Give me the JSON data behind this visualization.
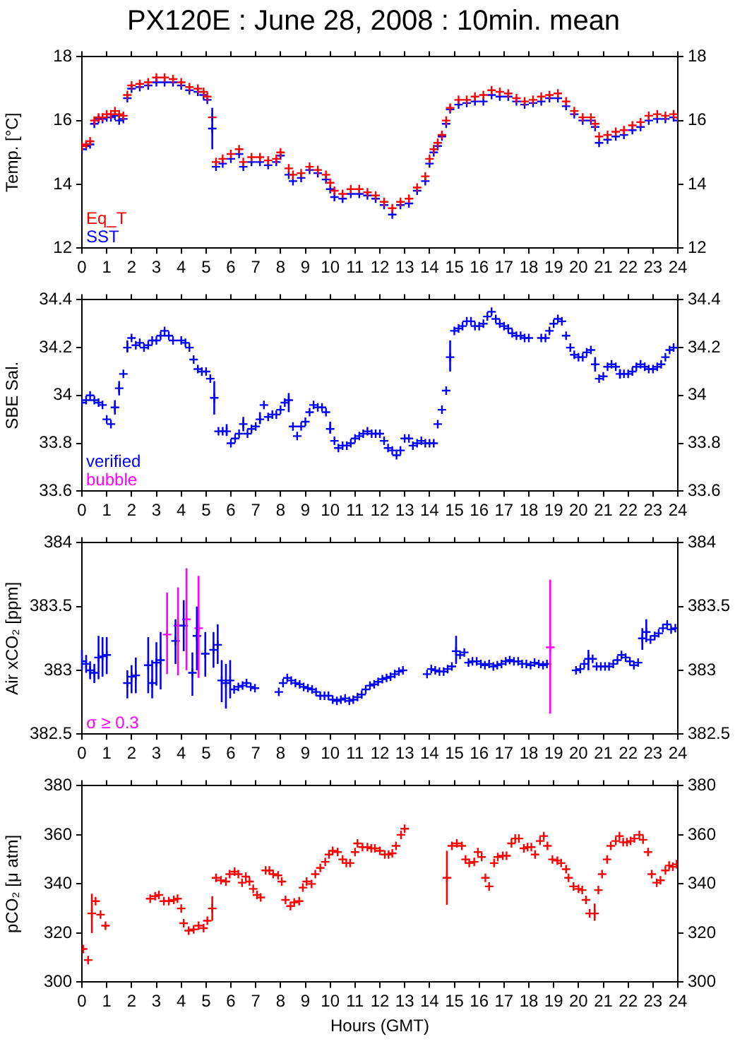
{
  "chart_data": [
    {
      "type": "scatter",
      "title": "PX120E : June 28, 2008 : 10min. mean",
      "ylabel": "Temp. [°C]",
      "xlim": [
        0,
        24
      ],
      "xticks": [
        0,
        1,
        2,
        3,
        4,
        5,
        6,
        7,
        8,
        9,
        10,
        11,
        12,
        13,
        14,
        15,
        16,
        17,
        18,
        19,
        20,
        21,
        22,
        23,
        24
      ],
      "ylim": [
        12,
        18
      ],
      "yticks": [
        12,
        14,
        16,
        18
      ],
      "y2lim": [
        12,
        18
      ],
      "y2ticks": [
        12,
        14,
        16,
        18
      ],
      "marker": "cross",
      "legend": "bottom left",
      "series": [
        {
          "name": "Eq_T",
          "color": "#ff0000",
          "x": [
            0.0,
            0.17,
            0.33,
            0.5,
            0.67,
            0.83,
            1.0,
            1.17,
            1.33,
            1.5,
            1.67,
            1.83,
            2.0,
            2.33,
            2.67,
            3.0,
            3.33,
            3.67,
            4.0,
            4.33,
            4.67,
            4.9,
            5.05,
            5.25,
            5.4,
            5.67,
            6.0,
            6.33,
            6.5,
            6.83,
            7.17,
            7.5,
            7.83,
            8.0,
            8.33,
            8.5,
            8.83,
            9.17,
            9.5,
            9.83,
            10.0,
            10.17,
            10.5,
            10.83,
            11.17,
            11.5,
            11.83,
            12.17,
            12.5,
            12.83,
            13.17,
            13.5,
            13.83,
            14.0,
            14.17,
            14.33,
            14.5,
            14.67,
            14.83,
            15.17,
            15.5,
            15.83,
            16.17,
            16.5,
            16.83,
            17.17,
            17.5,
            17.83,
            18.17,
            18.5,
            18.83,
            19.17,
            19.5,
            19.83,
            20.17,
            20.5,
            20.67,
            20.83,
            21.17,
            21.5,
            21.83,
            22.17,
            22.5,
            22.83,
            23.17,
            23.5,
            23.83,
            24.0
          ],
          "values": [
            15.2,
            15.25,
            15.35,
            16.0,
            16.1,
            16.1,
            16.2,
            16.2,
            16.3,
            16.2,
            16.15,
            16.8,
            17.1,
            17.15,
            17.2,
            17.35,
            17.35,
            17.3,
            17.2,
            17.05,
            17.0,
            16.9,
            16.75,
            16.1,
            14.7,
            14.8,
            14.95,
            15.1,
            14.7,
            14.85,
            14.85,
            14.75,
            14.8,
            15.0,
            14.5,
            14.3,
            14.35,
            14.55,
            14.45,
            14.3,
            14.05,
            13.8,
            13.7,
            13.85,
            13.85,
            13.75,
            13.65,
            13.45,
            13.25,
            13.45,
            13.55,
            13.9,
            14.25,
            14.8,
            15.1,
            15.3,
            15.55,
            16.0,
            16.4,
            16.65,
            16.65,
            16.75,
            16.8,
            16.95,
            16.9,
            16.85,
            16.7,
            16.6,
            16.65,
            16.75,
            16.8,
            16.85,
            16.6,
            16.3,
            16.1,
            16.1,
            15.9,
            15.5,
            15.55,
            15.65,
            15.7,
            15.85,
            15.95,
            16.15,
            16.2,
            16.15,
            16.2,
            16.1
          ]
        },
        {
          "name": "SST",
          "color": "#0000ff",
          "x": [
            0.0,
            0.17,
            0.33,
            0.5,
            0.67,
            0.83,
            1.0,
            1.17,
            1.33,
            1.5,
            1.67,
            1.83,
            2.0,
            2.33,
            2.67,
            3.0,
            3.33,
            3.67,
            4.0,
            4.33,
            4.67,
            4.9,
            5.05,
            5.25,
            5.4,
            5.67,
            6.0,
            6.33,
            6.5,
            6.83,
            7.17,
            7.5,
            7.83,
            8.0,
            8.33,
            8.5,
            8.83,
            9.17,
            9.5,
            9.83,
            10.0,
            10.17,
            10.5,
            10.83,
            11.17,
            11.5,
            11.83,
            12.17,
            12.5,
            12.83,
            13.17,
            13.5,
            13.83,
            14.0,
            14.17,
            14.33,
            14.5,
            14.67,
            14.83,
            15.17,
            15.5,
            15.83,
            16.17,
            16.5,
            16.83,
            17.17,
            17.5,
            17.83,
            18.17,
            18.5,
            18.83,
            19.17,
            19.5,
            19.83,
            20.17,
            20.5,
            20.67,
            20.83,
            21.17,
            21.5,
            21.83,
            22.17,
            22.5,
            22.83,
            23.17,
            23.5,
            23.83,
            24.0
          ],
          "values": [
            15.1,
            15.2,
            15.25,
            15.9,
            16.05,
            16.05,
            16.1,
            16.1,
            16.15,
            16.0,
            16.05,
            16.7,
            17.0,
            17.05,
            17.1,
            17.2,
            17.2,
            17.2,
            17.1,
            16.95,
            16.9,
            16.8,
            16.65,
            15.75,
            14.55,
            14.65,
            14.8,
            14.95,
            14.55,
            14.7,
            14.7,
            14.6,
            14.7,
            14.9,
            14.3,
            14.1,
            14.2,
            14.45,
            14.35,
            14.15,
            13.85,
            13.6,
            13.55,
            13.7,
            13.7,
            13.65,
            13.55,
            13.35,
            13.05,
            13.35,
            13.4,
            13.8,
            14.1,
            14.65,
            15.0,
            15.2,
            15.5,
            15.9,
            16.35,
            16.5,
            16.55,
            16.6,
            16.6,
            16.8,
            16.75,
            16.75,
            16.6,
            16.5,
            16.55,
            16.6,
            16.7,
            16.7,
            16.45,
            16.2,
            16.0,
            16.0,
            15.8,
            15.3,
            15.4,
            15.5,
            15.55,
            15.7,
            15.8,
            16.0,
            16.05,
            16.05,
            16.1,
            16.0
          ],
          "errors": [
            null,
            null,
            null,
            null,
            null,
            null,
            null,
            null,
            null,
            null,
            null,
            null,
            null,
            null,
            null,
            null,
            null,
            null,
            null,
            null,
            null,
            null,
            null,
            [
              15.1,
              16.4
            ],
            null,
            null,
            null,
            null,
            null,
            null,
            null,
            null,
            null,
            null,
            null,
            null,
            null,
            null,
            null,
            null,
            null,
            null,
            null,
            null,
            null,
            null,
            null,
            null,
            null,
            null,
            null,
            null,
            null,
            null,
            null,
            null,
            null,
            null,
            null,
            null,
            null,
            null,
            null,
            null,
            null,
            null,
            null,
            null,
            null,
            null,
            null,
            null,
            null,
            null,
            null,
            null,
            null,
            null,
            null,
            null,
            null,
            null,
            null,
            null,
            null,
            null,
            null,
            null
          ]
        }
      ]
    },
    {
      "type": "scatter",
      "ylabel": "SBE Sal.",
      "xlim": [
        0,
        24
      ],
      "xticks": [
        0,
        1,
        2,
        3,
        4,
        5,
        6,
        7,
        8,
        9,
        10,
        11,
        12,
        13,
        14,
        15,
        16,
        17,
        18,
        19,
        20,
        21,
        22,
        23,
        24
      ],
      "ylim": [
        33.6,
        34.4
      ],
      "yticks": [
        {
          "value": 33.6,
          "label": "33.6"
        },
        {
          "value": 33.8,
          "label": "33.8"
        },
        {
          "value": 34,
          "label": "34"
        },
        {
          "value": 34.2,
          "label": "34.2"
        },
        {
          "value": 34.4,
          "label": "34.4"
        }
      ],
      "y2lim": [
        33.6,
        34.4
      ],
      "y2ticks": [
        {
          "value": 33.6,
          "label": "33.6"
        },
        {
          "value": 33.8,
          "label": "33.8"
        },
        {
          "value": 34,
          "label": "34"
        },
        {
          "value": 34.2,
          "label": "34.2"
        },
        {
          "value": 34.4,
          "label": "34.4"
        }
      ],
      "marker": "cross",
      "legend": "bottom left",
      "series": [
        {
          "name": "verified",
          "color": "#0000ff",
          "x": [
            0.0,
            0.17,
            0.33,
            0.5,
            0.67,
            0.83,
            1.0,
            1.17,
            1.33,
            1.5,
            1.67,
            1.83,
            2.0,
            2.17,
            2.33,
            2.5,
            2.67,
            2.83,
            3.0,
            3.17,
            3.33,
            3.5,
            3.67,
            4.0,
            4.17,
            4.33,
            4.5,
            4.67,
            4.83,
            5.0,
            5.17,
            5.33,
            5.5,
            5.67,
            5.83,
            6.0,
            6.17,
            6.33,
            6.5,
            6.67,
            6.83,
            7.0,
            7.17,
            7.33,
            7.5,
            7.67,
            7.83,
            8.0,
            8.17,
            8.33,
            8.5,
            8.67,
            8.83,
            9.0,
            9.17,
            9.33,
            9.5,
            9.67,
            9.83,
            10.0,
            10.17,
            10.33,
            10.5,
            10.67,
            10.83,
            11.0,
            11.17,
            11.33,
            11.5,
            11.67,
            11.83,
            12.0,
            12.17,
            12.33,
            12.5,
            12.67,
            12.83,
            13.0,
            13.17,
            13.33,
            13.5,
            13.67,
            13.83,
            14.0,
            14.17,
            14.33,
            14.5,
            14.67,
            14.83,
            15.0,
            15.17,
            15.33,
            15.5,
            15.67,
            15.83,
            16.0,
            16.17,
            16.33,
            16.5,
            16.67,
            16.83,
            17.0,
            17.17,
            17.33,
            17.5,
            17.67,
            17.83,
            18.0,
            18.5,
            18.67,
            18.83,
            19.0,
            19.17,
            19.33,
            19.5,
            19.67,
            19.83,
            20.0,
            20.17,
            20.33,
            20.5,
            20.67,
            20.83,
            21.0,
            21.17,
            21.33,
            21.5,
            21.67,
            21.83,
            22.0,
            22.17,
            22.33,
            22.5,
            22.67,
            22.83,
            23.0,
            23.17,
            23.33,
            23.5,
            23.67,
            23.83,
            24.0
          ],
          "values": [
            33.97,
            33.98,
            34.0,
            33.98,
            33.97,
            33.96,
            33.9,
            33.88,
            33.95,
            34.03,
            34.09,
            34.2,
            34.24,
            34.21,
            34.22,
            34.2,
            34.21,
            34.23,
            34.23,
            34.25,
            34.27,
            34.25,
            34.23,
            34.23,
            34.22,
            34.2,
            34.15,
            34.11,
            34.1,
            34.1,
            34.07,
            33.99,
            33.85,
            33.85,
            33.85,
            33.8,
            33.82,
            33.84,
            33.88,
            33.84,
            33.86,
            33.87,
            33.9,
            33.96,
            33.91,
            33.92,
            33.92,
            33.94,
            33.97,
            33.98,
            33.87,
            33.83,
            33.87,
            33.89,
            33.93,
            33.96,
            33.95,
            33.95,
            33.93,
            33.86,
            33.81,
            33.78,
            33.79,
            33.79,
            33.8,
            33.82,
            33.83,
            33.84,
            33.85,
            33.84,
            33.84,
            33.84,
            33.81,
            33.78,
            33.77,
            33.75,
            33.77,
            33.82,
            33.82,
            33.79,
            33.8,
            33.81,
            33.8,
            33.8,
            33.8,
            33.88,
            33.94,
            34.02,
            34.16,
            34.27,
            34.28,
            34.29,
            34.31,
            34.31,
            34.29,
            34.29,
            34.3,
            34.33,
            34.35,
            34.32,
            34.3,
            34.29,
            34.28,
            34.26,
            34.25,
            34.25,
            34.24,
            34.24,
            34.24,
            34.24,
            34.27,
            34.3,
            34.32,
            34.31,
            34.25,
            34.2,
            34.17,
            34.16,
            34.16,
            34.18,
            34.19,
            34.13,
            34.07,
            34.08,
            34.12,
            34.13,
            34.12,
            34.09,
            34.09,
            34.09,
            34.1,
            34.12,
            34.13,
            34.12,
            34.11,
            34.11,
            34.12,
            34.13,
            34.16,
            34.19,
            34.2,
            34.2
          ],
          "errors": [
            null,
            null,
            null,
            null,
            null,
            null,
            null,
            null,
            [
              33.92,
              33.98
            ],
            [
              34.0,
              34.06
            ],
            null,
            [
              34.18,
              34.23
            ],
            null,
            null,
            null,
            null,
            null,
            null,
            null,
            null,
            null,
            null,
            null,
            null,
            null,
            null,
            null,
            null,
            null,
            null,
            null,
            [
              33.92,
              34.06
            ],
            null,
            null,
            [
              33.83,
              33.88
            ],
            null,
            null,
            null,
            [
              33.85,
              33.91
            ],
            null,
            null,
            null,
            [
              33.88,
              33.93
            ],
            null,
            null,
            null,
            null,
            null,
            null,
            [
              33.93,
              34.01
            ],
            null,
            null,
            null,
            null,
            null,
            null,
            null,
            null,
            null,
            [
              33.84,
              33.89
            ],
            null,
            null,
            null,
            null,
            null,
            null,
            null,
            null,
            null,
            null,
            null,
            null,
            null,
            null,
            null,
            null,
            null,
            null,
            null,
            null,
            null,
            null,
            null,
            null,
            null,
            null,
            null,
            null,
            [
              34.1,
              34.23
            ],
            null,
            null,
            null,
            null,
            null,
            null,
            null,
            null,
            null,
            null,
            null,
            null,
            null,
            null,
            null,
            null,
            null,
            null,
            null,
            null,
            null,
            null,
            null,
            null,
            null,
            null,
            null,
            null,
            null,
            null,
            null,
            null,
            [
              34.1,
              34.16
            ],
            null,
            null,
            null,
            null,
            null,
            [
              34.07,
              34.11
            ],
            null,
            null,
            null,
            null,
            null,
            null,
            null,
            null,
            null,
            null,
            null,
            null,
            null,
            null
          ]
        },
        {
          "name": "bubble",
          "color": "#ff00ff"
        }
      ]
    },
    {
      "type": "scatter",
      "ylabel": "Air xCO₂ [ppm]",
      "xlim": [
        0,
        24
      ],
      "xticks": [
        0,
        1,
        2,
        3,
        4,
        5,
        6,
        7,
        8,
        9,
        10,
        11,
        12,
        13,
        14,
        15,
        16,
        17,
        18,
        19,
        20,
        21,
        22,
        23,
        24
      ],
      "ylim": [
        382.5,
        384
      ],
      "yticks": [
        382.5,
        383,
        383.5,
        384
      ],
      "y2lim": [
        382.5,
        384
      ],
      "y2ticks": [
        382.5,
        383,
        383.5,
        384
      ],
      "marker": "cross",
      "legend": "bottom left",
      "series": [
        {
          "color": "#0000ff",
          "x": [
            0.0,
            0.17,
            0.33,
            0.5,
            0.67,
            0.83,
            1.0,
            1.83,
            2.0,
            2.17,
            2.67,
            2.83,
            3.0,
            3.17,
            3.77,
            4.1,
            4.45,
            4.63,
            4.97,
            5.3,
            5.47,
            5.63,
            5.8,
            5.97,
            6.13,
            6.3,
            6.47,
            6.63,
            6.8,
            6.97,
            7.93,
            8.1,
            8.27,
            8.43,
            8.6,
            8.77,
            8.93,
            9.1,
            9.27,
            9.43,
            9.6,
            9.77,
            9.93,
            10.1,
            10.27,
            10.43,
            10.6,
            10.77,
            10.93,
            11.1,
            11.27,
            11.43,
            11.6,
            11.77,
            11.93,
            12.1,
            12.27,
            12.43,
            12.6,
            12.77,
            12.93,
            13.9,
            14.07,
            14.23,
            14.4,
            14.57,
            14.73,
            14.9,
            15.07,
            15.23,
            15.4,
            15.57,
            15.73,
            15.9,
            16.07,
            16.23,
            16.4,
            16.57,
            16.73,
            16.9,
            17.07,
            17.23,
            17.4,
            17.57,
            17.73,
            17.9,
            18.07,
            18.23,
            18.4,
            18.57,
            18.73,
            19.9,
            20.07,
            20.23,
            20.4,
            20.57,
            20.73,
            20.9,
            21.07,
            21.23,
            21.4,
            21.57,
            21.73,
            21.9,
            22.07,
            22.23,
            22.4,
            22.57,
            22.73,
            22.9,
            23.07,
            23.23,
            23.4,
            23.57,
            23.73,
            23.9
          ],
          "values": [
            383.07,
            383.05,
            383.0,
            382.98,
            383.1,
            383.11,
            383.12,
            382.9,
            382.95,
            382.96,
            383.04,
            382.9,
            383.06,
            383.08,
            383.23,
            383.35,
            382.98,
            383.27,
            383.13,
            383.16,
            383.2,
            382.92,
            382.9,
            382.92,
            382.85,
            382.87,
            382.88,
            382.9,
            382.87,
            382.86,
            382.83,
            382.9,
            382.94,
            382.92,
            382.9,
            382.89,
            382.87,
            382.86,
            382.85,
            382.83,
            382.8,
            382.8,
            382.8,
            382.77,
            382.76,
            382.77,
            382.78,
            382.76,
            382.77,
            382.79,
            382.81,
            382.85,
            382.88,
            382.89,
            382.91,
            382.93,
            382.94,
            382.95,
            382.97,
            382.99,
            383.0,
            382.97,
            383.01,
            383.0,
            382.99,
            382.99,
            383.01,
            383.03,
            383.15,
            383.12,
            383.14,
            383.06,
            383.07,
            383.07,
            383.05,
            383.04,
            383.05,
            383.03,
            383.04,
            383.05,
            383.07,
            383.08,
            383.07,
            383.07,
            383.05,
            383.05,
            383.04,
            383.06,
            383.05,
            383.04,
            383.05,
            383.0,
            383.01,
            383.05,
            383.09,
            383.09,
            383.03,
            383.03,
            383.03,
            383.03,
            383.05,
            383.08,
            383.12,
            383.1,
            383.07,
            383.04,
            383.06,
            383.25,
            383.3,
            383.24,
            383.27,
            383.29,
            383.33,
            383.36,
            383.32,
            383.33
          ],
          "errors": [
            [
              383.0,
              383.16
            ],
            [
              382.98,
              383.12
            ],
            [
              382.93,
              383.07
            ],
            [
              382.9,
              383.05
            ],
            [
              382.93,
              383.27
            ],
            [
              382.95,
              383.26
            ],
            [
              382.97,
              383.26
            ],
            [
              382.78,
              383.0
            ],
            [
              382.82,
              383.04
            ],
            [
              382.82,
              383.1
            ],
            [
              382.82,
              383.26
            ],
            [
              382.78,
              383.08
            ],
            [
              382.88,
              383.22
            ],
            [
              382.85,
              383.3
            ],
            [
              383.05,
              383.4
            ],
            [
              383.15,
              383.55
            ],
            [
              382.8,
              383.14
            ],
            [
              383.0,
              383.5
            ],
            [
              382.95,
              383.3
            ],
            [
              383.02,
              383.3
            ],
            [
              383.05,
              383.36
            ],
            [
              382.75,
              383.08
            ],
            [
              382.7,
              383.05
            ],
            [
              382.78,
              383.08
            ],
            null,
            null,
            null,
            null,
            null,
            null,
            null,
            null,
            null,
            null,
            null,
            null,
            null,
            null,
            null,
            null,
            null,
            null,
            null,
            null,
            null,
            null,
            null,
            null,
            null,
            null,
            null,
            null,
            null,
            null,
            null,
            null,
            null,
            null,
            null,
            null,
            null,
            null,
            null,
            null,
            null,
            null,
            null,
            null,
            [
              383.05,
              383.27
            ],
            null,
            null,
            null,
            null,
            null,
            null,
            null,
            null,
            null,
            null,
            null,
            null,
            null,
            null,
            null,
            null,
            null,
            null,
            null,
            null,
            null,
            null,
            null,
            null,
            null,
            [
              383.0,
              383.16
            ],
            null,
            null,
            null,
            null,
            null,
            null,
            null,
            null,
            null,
            null,
            null,
            null,
            [
              383.16,
              383.33
            ],
            [
              383.22,
              383.4
            ],
            null,
            null,
            null,
            null,
            null,
            null,
            null
          ]
        },
        {
          "name": "σ ≥ 0.3",
          "color": "#ff00ff",
          "x": [
            3.43,
            3.87,
            4.21,
            4.7,
            18.86
          ],
          "values": [
            383.28,
            383.35,
            383.4,
            383.33,
            383.18
          ],
          "errors": [
            [
              382.97,
              383.61
            ],
            [
              382.96,
              383.65
            ],
            [
              383.0,
              383.8
            ],
            [
              382.94,
              383.74
            ],
            [
              382.66,
              383.71
            ]
          ]
        }
      ]
    },
    {
      "type": "scatter",
      "ylabel": "pCO₂ [μ atm]",
      "xlabel": "Hours (GMT)",
      "xlim": [
        0,
        24
      ],
      "xticks": [
        0,
        1,
        2,
        3,
        4,
        5,
        6,
        7,
        8,
        9,
        10,
        11,
        12,
        13,
        14,
        15,
        16,
        17,
        18,
        19,
        20,
        21,
        22,
        23,
        24
      ],
      "ylim": [
        300,
        380
      ],
      "yticks": [
        300,
        320,
        340,
        360,
        380
      ],
      "y2lim": [
        300,
        380
      ],
      "y2ticks": [
        300,
        320,
        340,
        360,
        380
      ],
      "marker": "cross",
      "series": [
        {
          "color": "#ff0000",
          "x": [
            0.05,
            0.25,
            0.4,
            0.55,
            0.75,
            0.95,
            2.75,
            2.95,
            3.1,
            3.3,
            3.5,
            3.7,
            3.85,
            4.0,
            4.1,
            4.3,
            4.5,
            4.7,
            4.9,
            5.05,
            5.25,
            5.4,
            5.6,
            5.8,
            5.95,
            6.15,
            6.3,
            6.45,
            6.6,
            6.75,
            6.9,
            7.05,
            7.2,
            7.4,
            7.55,
            7.7,
            7.9,
            8.05,
            8.2,
            8.4,
            8.55,
            8.75,
            8.9,
            9.05,
            9.25,
            9.4,
            9.6,
            9.8,
            9.95,
            10.1,
            10.3,
            10.5,
            10.65,
            10.8,
            11.0,
            11.1,
            11.3,
            11.5,
            11.65,
            11.8,
            12.0,
            12.2,
            12.35,
            12.5,
            12.65,
            12.85,
            13.0,
            14.7,
            14.9,
            15.1,
            15.3,
            15.45,
            15.6,
            15.8,
            15.95,
            16.1,
            16.25,
            16.4,
            16.6,
            16.75,
            16.95,
            17.1,
            17.3,
            17.45,
            17.6,
            17.8,
            17.95,
            18.1,
            18.25,
            18.45,
            18.6,
            18.75,
            18.95,
            19.15,
            19.3,
            19.5,
            19.6,
            19.8,
            20.0,
            20.15,
            20.3,
            20.45,
            20.65,
            20.8,
            20.95,
            21.15,
            21.3,
            21.5,
            21.65,
            21.8,
            21.95,
            22.1,
            22.25,
            22.45,
            22.6,
            22.8,
            22.95,
            23.15,
            23.3,
            23.5,
            23.65,
            23.8,
            23.95
          ],
          "values": [
            313.5,
            309,
            328,
            333,
            327.5,
            323,
            334,
            335,
            335.5,
            333,
            333,
            333.5,
            334,
            330,
            324,
            321,
            321.5,
            323,
            322,
            325,
            330,
            342.5,
            341.5,
            341,
            344,
            345,
            344,
            340.5,
            343,
            341,
            338,
            335.5,
            334.5,
            345.5,
            345.5,
            344,
            343.5,
            341,
            333.5,
            331,
            332.5,
            333,
            338.5,
            341,
            340,
            344,
            346.5,
            349,
            352,
            353.5,
            353,
            350,
            348.5,
            348.5,
            353,
            356.5,
            355,
            355,
            354.5,
            354.5,
            353.5,
            352,
            352,
            352.5,
            355.5,
            360,
            362.5,
            342.5,
            355.5,
            356.5,
            355.5,
            350,
            348.5,
            349,
            353,
            351,
            342.5,
            339,
            348.5,
            351,
            351.5,
            351.5,
            356.5,
            358.5,
            358.5,
            354.5,
            355,
            355,
            352,
            357.5,
            359.5,
            355.5,
            350,
            349.5,
            348.5,
            346,
            342.5,
            339,
            338,
            337.5,
            333.5,
            328,
            328,
            337.5,
            344,
            350,
            355.5,
            357.5,
            359.5,
            357,
            357,
            357.5,
            358.5,
            360,
            358,
            353,
            344,
            340.5,
            341.5,
            345.5,
            347.5,
            347,
            348
          ],
          "errors": [
            null,
            null,
            [
              320,
              336
            ],
            null,
            null,
            null,
            null,
            null,
            null,
            null,
            null,
            null,
            null,
            null,
            null,
            null,
            null,
            null,
            null,
            null,
            [
              325,
              335
            ],
            null,
            null,
            null,
            null,
            null,
            null,
            null,
            null,
            null,
            null,
            null,
            null,
            null,
            null,
            null,
            null,
            null,
            null,
            null,
            null,
            null,
            null,
            null,
            null,
            null,
            null,
            null,
            null,
            null,
            null,
            null,
            null,
            null,
            null,
            null,
            null,
            null,
            null,
            null,
            null,
            null,
            null,
            null,
            null,
            null,
            null,
            [
              331.5,
              353.5
            ],
            null,
            null,
            null,
            null,
            null,
            null,
            null,
            null,
            null,
            null,
            null,
            null,
            null,
            null,
            null,
            null,
            null,
            null,
            null,
            null,
            null,
            null,
            null,
            null,
            null,
            null,
            null,
            null,
            null,
            null,
            null,
            null,
            null,
            null,
            [
              325,
              332
            ],
            null,
            null,
            null,
            null,
            null,
            null,
            null,
            null,
            null,
            null,
            null,
            null,
            null,
            null,
            null,
            null,
            null,
            null,
            null,
            null
          ]
        }
      ]
    }
  ]
}
